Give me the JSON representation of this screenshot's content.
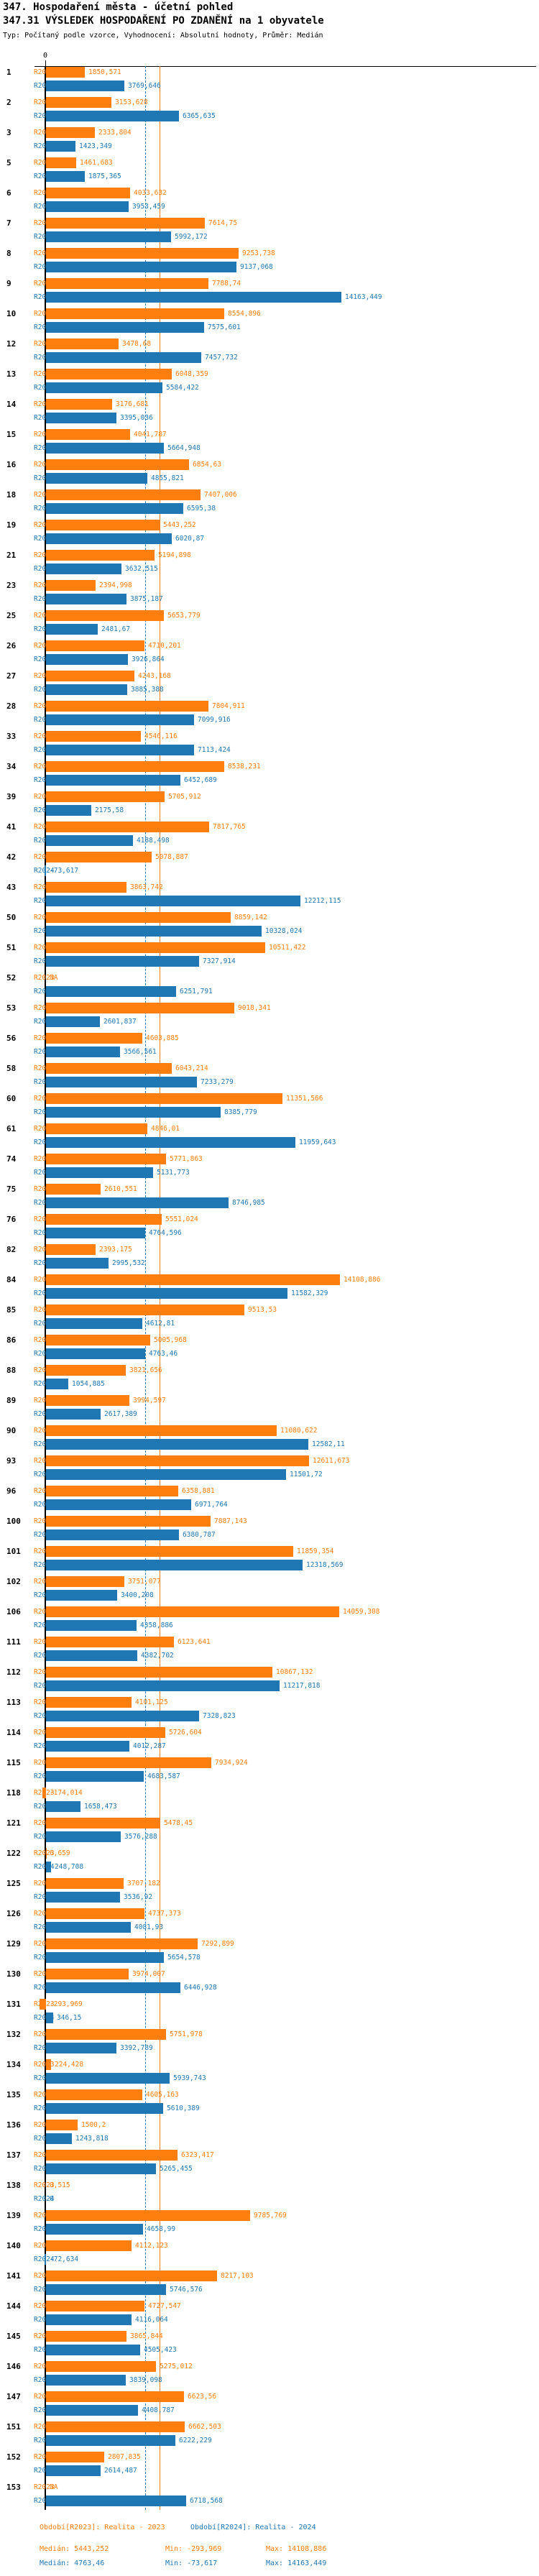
{
  "header": {
    "title": "347. Hospodaření města - účetní pohled",
    "subtitle": "347.31 VÝSLEDEK HOSPODAŘENÍ PO ZDANĚNÍ na 1 obyvatele",
    "meta": "Typ: Počítaný podle vzorce, Vyhodnocení: Absolutní hodnoty, Průměr: Medián"
  },
  "axis": {
    "zero_label": "0"
  },
  "colors": {
    "r2023": "#ff7f0e",
    "r2024": "#1f77b4"
  },
  "chart_data": {
    "type": "bar",
    "orientation": "horizontal",
    "title": "347.31 VÝSLEDEK HOSPODAŘENÍ PO ZDANĚNÍ na 1 obyvatele",
    "series_labels": [
      "R2023",
      "R2024"
    ],
    "value_note": "values are CZK per inhabitant, comma decimal separator, NA = missing",
    "x_axis": {
      "zero_label": "0",
      "approx_max": 14163.449
    },
    "reference_lines": [
      {
        "series": "R2023",
        "label": "Medián 2023",
        "value": 5443.252,
        "style": "solid",
        "color": "#ff7f0e"
      },
      {
        "series": "R2024",
        "label": "Medián 2024",
        "value": 4763.46,
        "style": "dashed",
        "color": "#1f77b4"
      }
    ],
    "rows": [
      {
        "id": "1",
        "R2023": "1850,571",
        "R2024": "3769,646"
      },
      {
        "id": "2",
        "R2023": "3153,628",
        "R2024": "6365,635"
      },
      {
        "id": "3",
        "R2023": "2333,804",
        "R2024": "1423,349"
      },
      {
        "id": "5",
        "R2023": "1461,683",
        "R2024": "1875,365"
      },
      {
        "id": "6",
        "R2023": "4033,632",
        "R2024": "3953,459"
      },
      {
        "id": "7",
        "R2023": "7614,75",
        "R2024": "5992,172"
      },
      {
        "id": "8",
        "R2023": "9253,738",
        "R2024": "9137,068"
      },
      {
        "id": "9",
        "R2023": "7788,74",
        "R2024": "14163,449"
      },
      {
        "id": "10",
        "R2023": "8554,896",
        "R2024": "7575,601"
      },
      {
        "id": "12",
        "R2023": "3478,68",
        "R2024": "7457,732"
      },
      {
        "id": "13",
        "R2023": "6048,359",
        "R2024": "5584,422"
      },
      {
        "id": "14",
        "R2023": "3176,681",
        "R2024": "3395,036"
      },
      {
        "id": "15",
        "R2023": "4041,787",
        "R2024": "5664,948"
      },
      {
        "id": "16",
        "R2023": "6854,63",
        "R2024": "4855,821"
      },
      {
        "id": "18",
        "R2023": "7407,006",
        "R2024": "6595,38"
      },
      {
        "id": "19",
        "R2023": "5443,252",
        "R2024": "6020,87"
      },
      {
        "id": "21",
        "R2023": "5194,898",
        "R2024": "3632,515"
      },
      {
        "id": "23",
        "R2023": "2394,998",
        "R2024": "3875,187"
      },
      {
        "id": "25",
        "R2023": "5653,779",
        "R2024": "2481,67"
      },
      {
        "id": "26",
        "R2023": "4710,201",
        "R2024": "3926,864"
      },
      {
        "id": "27",
        "R2023": "4243,168",
        "R2024": "3885,388"
      },
      {
        "id": "28",
        "R2023": "7804,911",
        "R2024": "7099,916"
      },
      {
        "id": "33",
        "R2023": "4546,116",
        "R2024": "7113,424"
      },
      {
        "id": "34",
        "R2023": "8538,231",
        "R2024": "6452,689"
      },
      {
        "id": "39",
        "R2023": "5705,912",
        "R2024": "2175,58"
      },
      {
        "id": "41",
        "R2023": "7817,765",
        "R2024": "4188,498"
      },
      {
        "id": "42",
        "R2023": "5078,887",
        "R2024": "-73,617"
      },
      {
        "id": "43",
        "R2023": "3863,742",
        "R2024": "12212,115"
      },
      {
        "id": "50",
        "R2023": "8859,142",
        "R2024": "10328,024"
      },
      {
        "id": "51",
        "R2023": "10511,422",
        "R2024": "7327,914"
      },
      {
        "id": "52",
        "R2023": "NA",
        "R2024": "6251,791"
      },
      {
        "id": "53",
        "R2023": "9018,341",
        "R2024": "2601,837"
      },
      {
        "id": "56",
        "R2023": "4603,885",
        "R2024": "3566,561"
      },
      {
        "id": "58",
        "R2023": "6043,214",
        "R2024": "7233,279"
      },
      {
        "id": "60",
        "R2023": "11351,566",
        "R2024": "8385,779"
      },
      {
        "id": "61",
        "R2023": "4846,01",
        "R2024": "11959,643"
      },
      {
        "id": "74",
        "R2023": "5771,863",
        "R2024": "5131,773"
      },
      {
        "id": "75",
        "R2023": "2610,551",
        "R2024": "8746,985"
      },
      {
        "id": "76",
        "R2023": "5551,024",
        "R2024": "4764,596"
      },
      {
        "id": "82",
        "R2023": "2393,175",
        "R2024": "2995,532"
      },
      {
        "id": "84",
        "R2023": "14108,886",
        "R2024": "11582,329"
      },
      {
        "id": "85",
        "R2023": "9513,53",
        "R2024": "4612,81"
      },
      {
        "id": "86",
        "R2023": "5005,968",
        "R2024": "4763,46"
      },
      {
        "id": "88",
        "R2023": "3821,656",
        "R2024": "1054,885"
      },
      {
        "id": "89",
        "R2023": "3994,597",
        "R2024": "2617,389"
      },
      {
        "id": "90",
        "R2023": "11080,622",
        "R2024": "12582,11"
      },
      {
        "id": "93",
        "R2023": "12611,673",
        "R2024": "11501,72"
      },
      {
        "id": "96",
        "R2023": "6358,881",
        "R2024": "6971,764"
      },
      {
        "id": "100",
        "R2023": "7887,143",
        "R2024": "6380,787"
      },
      {
        "id": "101",
        "R2023": "11859,354",
        "R2024": "12318,569"
      },
      {
        "id": "102",
        "R2023": "3751,077",
        "R2024": "3400,208"
      },
      {
        "id": "106",
        "R2023": "14059,308",
        "R2024": "4358,886"
      },
      {
        "id": "111",
        "R2023": "6123,641",
        "R2024": "4382,702"
      },
      {
        "id": "112",
        "R2023": "10867,132",
        "R2024": "11217,818"
      },
      {
        "id": "113",
        "R2023": "4101,125",
        "R2024": "7328,823"
      },
      {
        "id": "114",
        "R2023": "5726,604",
        "R2024": "4012,287"
      },
      {
        "id": "115",
        "R2023": "7934,924",
        "R2024": "4683,587"
      },
      {
        "id": "118",
        "R2023": "-174,014",
        "R2024": "1658,473"
      },
      {
        "id": "121",
        "R2023": "5478,45",
        "R2024": "3576,288"
      },
      {
        "id": "122",
        "R2023": "6,659",
        "R2024": "248,708"
      },
      {
        "id": "125",
        "R2023": "3707,182",
        "R2024": "3536,92"
      },
      {
        "id": "126",
        "R2023": "4737,373",
        "R2024": "4081,93"
      },
      {
        "id": "129",
        "R2023": "7292,899",
        "R2024": "5654,578"
      },
      {
        "id": "130",
        "R2023": "3974,007",
        "R2024": "6446,928"
      },
      {
        "id": "131",
        "R2023": "-293,969",
        "R2024": "346,15"
      },
      {
        "id": "132",
        "R2023": "5751,978",
        "R2024": "3392,789"
      },
      {
        "id": "134",
        "R2023": "224,428",
        "R2024": "5939,743"
      },
      {
        "id": "135",
        "R2023": "4605,163",
        "R2024": "5610,389"
      },
      {
        "id": "136",
        "R2023": "1500,2",
        "R2024": "1243,818"
      },
      {
        "id": "137",
        "R2023": "6323,417",
        "R2024": "5265,455"
      },
      {
        "id": "138",
        "R2023": "0,515",
        "R2024": "0"
      },
      {
        "id": "139",
        "R2023": "9785,769",
        "R2024": "4658,99"
      },
      {
        "id": "140",
        "R2023": "4112,123",
        "R2024": "-72,634"
      },
      {
        "id": "141",
        "R2023": "8217,103",
        "R2024": "5746,576"
      },
      {
        "id": "144",
        "R2023": "4727,547",
        "R2024": "4116,064"
      },
      {
        "id": "145",
        "R2023": "3865,844",
        "R2024": "4505,423"
      },
      {
        "id": "146",
        "R2023": "5275,012",
        "R2024": "3839,098"
      },
      {
        "id": "147",
        "R2023": "6623,56",
        "R2024": "4408,787"
      },
      {
        "id": "151",
        "R2023": "6662,503",
        "R2024": "6222,229"
      },
      {
        "id": "152",
        "R2023": "2807,835",
        "R2024": "2614,487"
      },
      {
        "id": "153",
        "R2023": "NA",
        "R2024": "6718,568"
      }
    ]
  },
  "footer": {
    "period_2023": "Období[R2023]: Realita - 2023",
    "period_2024": "Období[R2024]: Realita - 2024",
    "stats_2023": {
      "median": "Medián: 5443,252",
      "min": "Min: -293,969",
      "max": "Max: 14108,886"
    },
    "stats_2024": {
      "median": "Medián: 4763,46",
      "min": "Min: -73,617",
      "max": "Max: 14163,449"
    }
  }
}
